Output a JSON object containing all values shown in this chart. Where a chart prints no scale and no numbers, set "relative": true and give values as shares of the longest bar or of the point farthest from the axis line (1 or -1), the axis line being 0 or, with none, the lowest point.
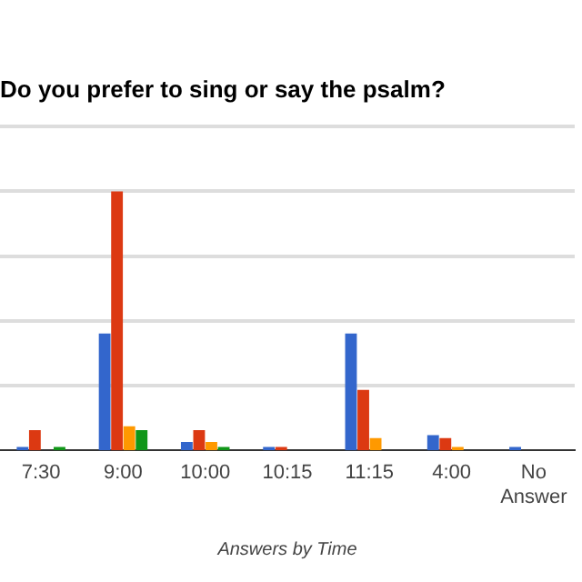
{
  "chart_data": {
    "type": "bar",
    "title": "Do you prefer to sing or say the psalm?",
    "xlabel": "Answers by Time",
    "relative": true,
    "grid": "y",
    "legend": false,
    "categories": [
      "7:30",
      "9:00",
      "10:00",
      "10:15",
      "11:15",
      "4:00",
      "No Answer"
    ],
    "series": [
      {
        "color": "#3366cc",
        "values": [
          0.013,
          0.451,
          0.032,
          0.013,
          0.451,
          0.059,
          0.013
        ]
      },
      {
        "color": "#dc3912",
        "values": [
          0.078,
          1,
          0.078,
          0.013,
          0.233,
          0.047,
          0
        ]
      },
      {
        "color": "#ff9900",
        "values": [
          0,
          0.093,
          0.032,
          0,
          0.047,
          0.013,
          0
        ]
      },
      {
        "color": "#109618",
        "values": [
          0.013,
          0.078,
          0.013,
          0,
          0,
          0,
          0
        ]
      }
    ]
  }
}
